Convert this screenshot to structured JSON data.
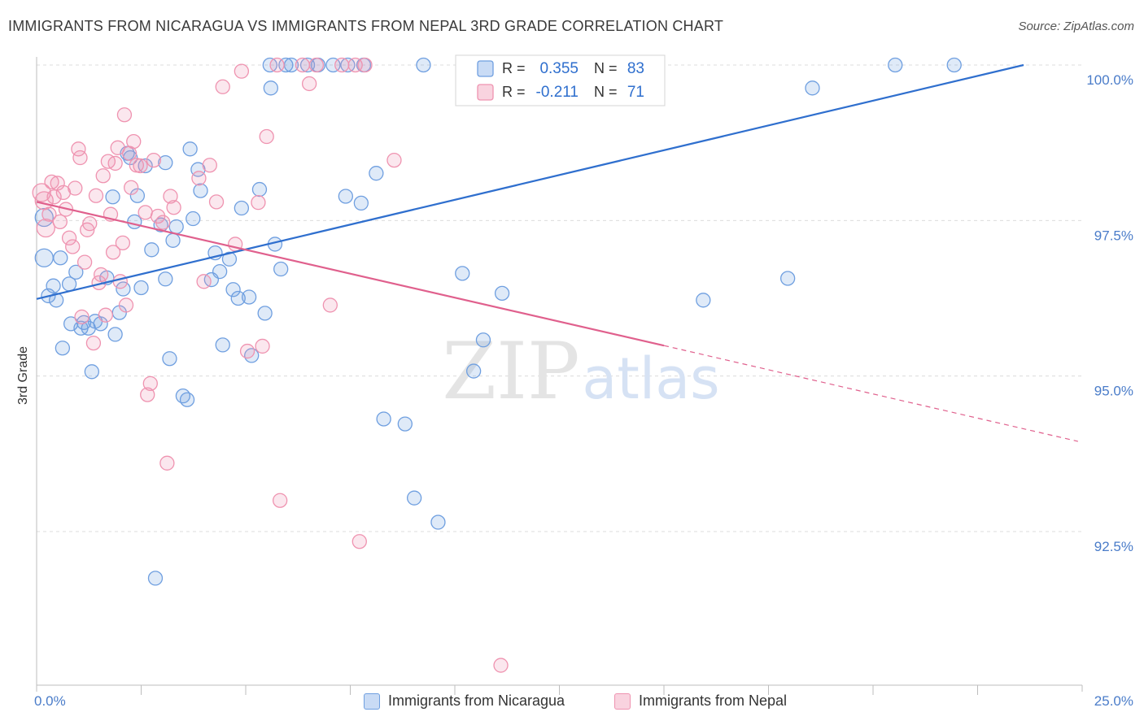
{
  "header": {
    "title": "IMMIGRANTS FROM NICARAGUA VS IMMIGRANTS FROM NEPAL 3RD GRADE CORRELATION CHART",
    "source": "Source: ZipAtlas.com"
  },
  "watermark": {
    "zip": "ZIP",
    "atlas": "atlas"
  },
  "stats_box": {
    "rows": [
      {
        "r_label": "R =",
        "r_value": "0.355",
        "n_label": "N =",
        "n_value": "83",
        "color": "#6f9fe0"
      },
      {
        "r_label": "R =",
        "r_value": "-0.211",
        "n_label": "N =",
        "n_value": "71",
        "color": "#ef93b0"
      }
    ]
  },
  "legend": {
    "items": [
      {
        "label": "Immigrants from Nicaragua",
        "color": "#6f9fe0"
      },
      {
        "label": "Immigrants from Nepal",
        "color": "#ef93b0"
      }
    ]
  },
  "chart_data": {
    "type": "scatter",
    "title": "IMMIGRANTS FROM NICARAGUA VS IMMIGRANTS FROM NEPAL 3RD GRADE CORRELATION CHART",
    "xlabel": "",
    "ylabel": "3rd Grade",
    "xlim": [
      0,
      25
    ],
    "ylim": [
      90.2,
      100.4
    ],
    "x_tick_labels": [
      "0.0%",
      "25.0%"
    ],
    "y_ticks": [
      92.5,
      95.0,
      97.5,
      100.0
    ],
    "y_tick_labels": [
      "92.5%",
      "95.0%",
      "97.5%",
      "100.0%"
    ],
    "grid": true,
    "legend_position": "bottom-center",
    "series": [
      {
        "name": "Immigrants from Nicaragua",
        "color": "#6f9fe0",
        "line_color": "#2f6fce",
        "trend": {
          "x": [
            0.0,
            23.6
          ],
          "y": [
            96.24,
            100.0
          ],
          "dashed_to": null
        },
        "points": [
          [
            0.18,
            97.55
          ],
          [
            0.18,
            96.9
          ],
          [
            0.28,
            96.29
          ],
          [
            0.4,
            96.45
          ],
          [
            0.47,
            96.22
          ],
          [
            0.57,
            96.9
          ],
          [
            0.62,
            95.45
          ],
          [
            0.78,
            96.48
          ],
          [
            0.82,
            95.84
          ],
          [
            0.94,
            96.67
          ],
          [
            1.06,
            95.77
          ],
          [
            1.13,
            95.86
          ],
          [
            1.24,
            95.77
          ],
          [
            1.32,
            95.07
          ],
          [
            1.4,
            95.88
          ],
          [
            1.53,
            95.84
          ],
          [
            1.68,
            96.58
          ],
          [
            1.82,
            97.88
          ],
          [
            1.88,
            95.67
          ],
          [
            1.98,
            96.02
          ],
          [
            2.07,
            96.4
          ],
          [
            2.17,
            98.58
          ],
          [
            2.24,
            98.51
          ],
          [
            2.34,
            97.48
          ],
          [
            2.41,
            97.9
          ],
          [
            2.5,
            96.42
          ],
          [
            2.6,
            98.38
          ],
          [
            2.75,
            97.03
          ],
          [
            2.84,
            91.75
          ],
          [
            2.97,
            97.43
          ],
          [
            3.08,
            96.56
          ],
          [
            3.18,
            95.28
          ],
          [
            3.26,
            97.18
          ],
          [
            3.34,
            97.4
          ],
          [
            3.5,
            94.68
          ],
          [
            3.6,
            94.62
          ],
          [
            3.67,
            98.65
          ],
          [
            3.74,
            97.53
          ],
          [
            3.86,
            98.32
          ],
          [
            3.92,
            97.98
          ],
          [
            4.18,
            96.55
          ],
          [
            4.27,
            96.98
          ],
          [
            4.38,
            96.68
          ],
          [
            4.45,
            95.5
          ],
          [
            4.61,
            96.88
          ],
          [
            4.7,
            96.39
          ],
          [
            4.82,
            96.25
          ],
          [
            4.9,
            97.7
          ],
          [
            5.08,
            96.27
          ],
          [
            5.14,
            95.33
          ],
          [
            5.33,
            98.0
          ],
          [
            5.46,
            96.01
          ],
          [
            5.6,
            99.63
          ],
          [
            5.7,
            97.12
          ],
          [
            5.84,
            96.72
          ],
          [
            5.58,
            100.0
          ],
          [
            5.96,
            100.0
          ],
          [
            6.09,
            100.0
          ],
          [
            6.48,
            100.0
          ],
          [
            6.73,
            100.0
          ],
          [
            7.09,
            100.0
          ],
          [
            7.44,
            100.0
          ],
          [
            7.82,
            100.0
          ],
          [
            7.39,
            97.89
          ],
          [
            7.76,
            97.78
          ],
          [
            8.12,
            98.26
          ],
          [
            8.3,
            94.31
          ],
          [
            8.81,
            94.23
          ],
          [
            9.03,
            93.04
          ],
          [
            9.25,
            100.0
          ],
          [
            9.6,
            92.65
          ],
          [
            10.18,
            96.65
          ],
          [
            10.45,
            95.08
          ],
          [
            10.68,
            95.58
          ],
          [
            11.13,
            96.33
          ],
          [
            11.58,
            99.8
          ],
          [
            11.94,
            100.0
          ],
          [
            15.94,
            96.22
          ],
          [
            17.96,
            96.57
          ],
          [
            18.55,
            99.63
          ],
          [
            20.53,
            100.0
          ],
          [
            21.94,
            100.0
          ],
          [
            3.08,
            98.43
          ]
        ]
      },
      {
        "name": "Immigrants from Nepal",
        "color": "#ef93b0",
        "line_color": "#e0608d",
        "trend": {
          "x": [
            0.0,
            15.0
          ],
          "y": [
            97.8,
            95.49
          ],
          "dashed_to": [
            24.9,
            93.95
          ]
        },
        "points": [
          [
            0.12,
            97.95
          ],
          [
            0.18,
            97.82
          ],
          [
            0.22,
            97.38
          ],
          [
            0.3,
            97.6
          ],
          [
            0.36,
            98.12
          ],
          [
            0.42,
            97.88
          ],
          [
            0.5,
            98.1
          ],
          [
            0.56,
            97.48
          ],
          [
            0.64,
            97.95
          ],
          [
            0.7,
            97.68
          ],
          [
            0.78,
            97.22
          ],
          [
            0.86,
            97.08
          ],
          [
            0.92,
            98.02
          ],
          [
            1.0,
            98.65
          ],
          [
            1.04,
            98.51
          ],
          [
            1.08,
            95.95
          ],
          [
            1.15,
            96.83
          ],
          [
            1.21,
            97.35
          ],
          [
            1.27,
            97.45
          ],
          [
            1.36,
            95.53
          ],
          [
            1.42,
            97.9
          ],
          [
            1.49,
            96.5
          ],
          [
            1.54,
            96.63
          ],
          [
            1.59,
            98.22
          ],
          [
            1.65,
            95.98
          ],
          [
            1.71,
            98.45
          ],
          [
            1.77,
            97.6
          ],
          [
            1.83,
            96.99
          ],
          [
            1.88,
            98.42
          ],
          [
            1.94,
            98.67
          ],
          [
            2.0,
            96.52
          ],
          [
            2.06,
            97.14
          ],
          [
            2.1,
            99.2
          ],
          [
            2.14,
            96.14
          ],
          [
            2.22,
            98.58
          ],
          [
            2.26,
            98.03
          ],
          [
            2.32,
            98.77
          ],
          [
            2.39,
            98.39
          ],
          [
            2.48,
            98.38
          ],
          [
            2.6,
            97.63
          ],
          [
            2.65,
            94.7
          ],
          [
            2.72,
            94.88
          ],
          [
            2.8,
            98.47
          ],
          [
            2.9,
            97.57
          ],
          [
            3.02,
            97.47
          ],
          [
            3.12,
            93.6
          ],
          [
            3.2,
            97.89
          ],
          [
            3.28,
            97.71
          ],
          [
            3.88,
            98.18
          ],
          [
            4.0,
            96.52
          ],
          [
            4.14,
            98.39
          ],
          [
            4.3,
            97.8
          ],
          [
            4.45,
            99.65
          ],
          [
            4.75,
            97.12
          ],
          [
            4.9,
            99.9
          ],
          [
            5.04,
            95.4
          ],
          [
            5.3,
            97.79
          ],
          [
            5.4,
            95.48
          ],
          [
            5.5,
            98.85
          ],
          [
            5.75,
            100.0
          ],
          [
            5.82,
            93.0
          ],
          [
            6.36,
            100.0
          ],
          [
            6.52,
            99.7
          ],
          [
            6.69,
            100.0
          ],
          [
            7.02,
            96.14
          ],
          [
            7.3,
            100.0
          ],
          [
            7.62,
            100.0
          ],
          [
            7.72,
            92.34
          ],
          [
            7.85,
            100.0
          ],
          [
            8.55,
            98.47
          ],
          [
            11.1,
            90.35
          ]
        ]
      }
    ]
  }
}
